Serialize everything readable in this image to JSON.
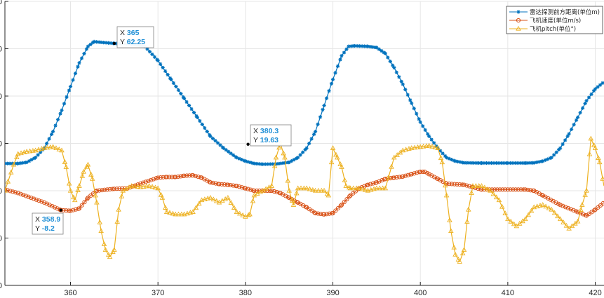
{
  "chart_data": {
    "type": "line",
    "xlim": [
      352.5,
      421
    ],
    "ylim": [
      -40,
      80
    ],
    "x_ticks": [
      "360",
      "370",
      "380",
      "390",
      "400",
      "410",
      "420"
    ],
    "y_ticks": [
      "80",
      "60",
      "40",
      "20",
      "0",
      "-20",
      "-40"
    ],
    "y_tick_values": [
      80,
      60,
      40,
      20,
      0,
      -20,
      -40
    ],
    "x_tick_values": [
      360,
      370,
      380,
      390,
      400,
      410,
      420
    ],
    "grid": true,
    "legend_position": "top-right",
    "series": [
      {
        "name": "雷达探测前方距离(单位m)",
        "color": "#0072bd",
        "marker": "asterisk",
        "points": [
          [
            352.5,
            11.5
          ],
          [
            354,
            11.5
          ],
          [
            355,
            12
          ],
          [
            356,
            14
          ],
          [
            357,
            18
          ],
          [
            358,
            25
          ],
          [
            359,
            34
          ],
          [
            360,
            44
          ],
          [
            361,
            54
          ],
          [
            362,
            61
          ],
          [
            362.7,
            63
          ],
          [
            363.5,
            62.7
          ],
          [
            365,
            62.25
          ],
          [
            367,
            62
          ],
          [
            368.5,
            61
          ],
          [
            370,
            55
          ],
          [
            371.5,
            47
          ],
          [
            373,
            39
          ],
          [
            374.5,
            31
          ],
          [
            376,
            23
          ],
          [
            377.5,
            18
          ],
          [
            379,
            14
          ],
          [
            380,
            12.5
          ],
          [
            381,
            11.5
          ],
          [
            382,
            11.2
          ],
          [
            383.5,
            11.3
          ],
          [
            385,
            12
          ],
          [
            386,
            14
          ],
          [
            387,
            18
          ],
          [
            388,
            25
          ],
          [
            389,
            36
          ],
          [
            390,
            47
          ],
          [
            391,
            57
          ],
          [
            391.8,
            61
          ],
          [
            392.5,
            61.2
          ],
          [
            394,
            61
          ],
          [
            395,
            60.5
          ],
          [
            396,
            58
          ],
          [
            397,
            52
          ],
          [
            398,
            45
          ],
          [
            399,
            37
          ],
          [
            400,
            29
          ],
          [
            401,
            23
          ],
          [
            402,
            18
          ],
          [
            403,
            14
          ],
          [
            404,
            12.5
          ],
          [
            405,
            11.8
          ],
          [
            407,
            11.7
          ],
          [
            410,
            11.7
          ],
          [
            412,
            11.7
          ],
          [
            413,
            11.8
          ],
          [
            414,
            12.5
          ],
          [
            415,
            14
          ],
          [
            416,
            18
          ],
          [
            417,
            24
          ],
          [
            418,
            31
          ],
          [
            419,
            38
          ],
          [
            420,
            43
          ],
          [
            421,
            46
          ]
        ]
      },
      {
        "name": "飞机速度(单位m/s)",
        "color": "#d95319",
        "marker": "circle",
        "points": [
          [
            352.5,
            0.5
          ],
          [
            354,
            -1
          ],
          [
            355.5,
            -3
          ],
          [
            357,
            -5
          ],
          [
            358.9,
            -8.2
          ],
          [
            360,
            -8.5
          ],
          [
            361,
            -7.5
          ],
          [
            362,
            -3
          ],
          [
            363,
            0
          ],
          [
            365,
            0.8
          ],
          [
            366.5,
            1
          ],
          [
            368,
            3
          ],
          [
            370,
            5.5
          ],
          [
            371,
            5.8
          ],
          [
            372,
            5.8
          ],
          [
            373,
            6.3
          ],
          [
            374,
            6.5
          ],
          [
            375,
            5.5
          ],
          [
            376,
            3.5
          ],
          [
            377,
            2.8
          ],
          [
            378,
            2.5
          ],
          [
            379,
            2
          ],
          [
            380,
            1
          ],
          [
            381,
            0
          ],
          [
            383,
            0
          ],
          [
            384,
            -1
          ],
          [
            385,
            -3
          ],
          [
            386,
            -5
          ],
          [
            387,
            -7
          ],
          [
            388,
            -9.5
          ],
          [
            389,
            -10
          ],
          [
            390,
            -9.5
          ],
          [
            391,
            -6
          ],
          [
            392,
            -2
          ],
          [
            393,
            1
          ],
          [
            394,
            2.5
          ],
          [
            395,
            3.5
          ],
          [
            396,
            5
          ],
          [
            397,
            5.5
          ],
          [
            398,
            6
          ],
          [
            399,
            7
          ],
          [
            400,
            8
          ],
          [
            400.5,
            8
          ],
          [
            401,
            7
          ],
          [
            402,
            5
          ],
          [
            403,
            3
          ],
          [
            405,
            2.5
          ],
          [
            406,
            1.5
          ],
          [
            407,
            0.5
          ],
          [
            410,
            0.5
          ],
          [
            412,
            0.5
          ],
          [
            413,
            0
          ],
          [
            414,
            -2
          ],
          [
            416,
            -6
          ],
          [
            418,
            -9
          ],
          [
            419,
            -10.5
          ],
          [
            420,
            -8
          ],
          [
            421,
            -5
          ]
        ]
      },
      {
        "name": "飞机pitch(单位°)",
        "color": "#edb120",
        "marker": "triangle",
        "points": [
          [
            352.5,
            0
          ],
          [
            353.5,
            11
          ],
          [
            354,
            15.5
          ],
          [
            355,
            16.5
          ],
          [
            356,
            17
          ],
          [
            357,
            18
          ],
          [
            358,
            18.5
          ],
          [
            359,
            17
          ],
          [
            359.5,
            10
          ],
          [
            360,
            0
          ],
          [
            360.5,
            -4
          ],
          [
            361,
            2
          ],
          [
            361.5,
            8
          ],
          [
            362,
            11
          ],
          [
            362.5,
            5
          ],
          [
            363,
            -5
          ],
          [
            363.5,
            -17
          ],
          [
            364,
            -25
          ],
          [
            364.5,
            -28
          ],
          [
            365,
            -25
          ],
          [
            365.5,
            -8
          ],
          [
            366,
            0
          ],
          [
            367,
            2
          ],
          [
            368,
            1.5
          ],
          [
            369,
            2
          ],
          [
            370,
            1
          ],
          [
            370.5,
            -3
          ],
          [
            371,
            -9
          ],
          [
            372,
            -10
          ],
          [
            373,
            -10
          ],
          [
            374,
            -9
          ],
          [
            375,
            -4
          ],
          [
            376,
            -3
          ],
          [
            377,
            -5
          ],
          [
            378,
            -3
          ],
          [
            379,
            -9
          ],
          [
            380,
            -11
          ],
          [
            380.5,
            -10
          ],
          [
            381,
            -2
          ],
          [
            382,
            0
          ],
          [
            383,
            2
          ],
          [
            383.5,
            14
          ],
          [
            384,
            20
          ],
          [
            384.5,
            14
          ],
          [
            385,
            0
          ],
          [
            385.5,
            -6
          ],
          [
            386,
            1
          ],
          [
            387,
            1
          ],
          [
            388,
            0
          ],
          [
            389,
            0
          ],
          [
            389.5,
            -2
          ],
          [
            390,
            18
          ],
          [
            390.5,
            14
          ],
          [
            391,
            10
          ],
          [
            391.5,
            2
          ],
          [
            392,
            1
          ],
          [
            393,
            1
          ],
          [
            394,
            0
          ],
          [
            395,
            1
          ],
          [
            396,
            1
          ],
          [
            397,
            14
          ],
          [
            398,
            17
          ],
          [
            399,
            18
          ],
          [
            400,
            18.5
          ],
          [
            401,
            19
          ],
          [
            402,
            18
          ],
          [
            402.5,
            12
          ],
          [
            403,
            -2
          ],
          [
            403.5,
            -17
          ],
          [
            404,
            -27
          ],
          [
            404.5,
            -30
          ],
          [
            405,
            -25
          ],
          [
            405.5,
            -8
          ],
          [
            406,
            2
          ],
          [
            407,
            2
          ],
          [
            408,
            0
          ],
          [
            409,
            -4
          ],
          [
            410,
            -12
          ],
          [
            411,
            -15
          ],
          [
            412,
            -12
          ],
          [
            413,
            -7
          ],
          [
            414,
            -6
          ],
          [
            415,
            -8
          ],
          [
            416,
            -12
          ],
          [
            417,
            -16
          ],
          [
            418,
            -13
          ],
          [
            418.5,
            -6
          ],
          [
            419,
            0
          ],
          [
            419.5,
            22
          ],
          [
            420,
            18
          ],
          [
            420.5,
            12
          ],
          [
            421,
            2
          ]
        ]
      }
    ],
    "datatips": [
      {
        "x": "365",
        "y": "62.25"
      },
      {
        "x": "380.3",
        "y": "19.63"
      },
      {
        "x": "358.9",
        "y": "-8.2"
      }
    ]
  }
}
